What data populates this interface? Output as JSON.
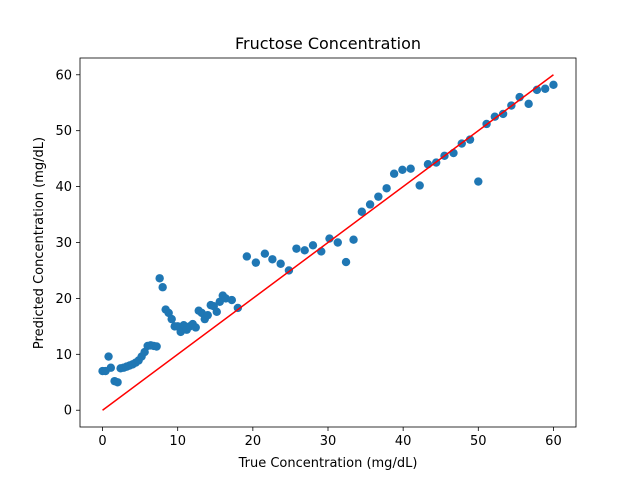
{
  "chart_data": {
    "type": "scatter",
    "title": "Fructose Concentration",
    "xlabel": "True Concentration (mg/dL)",
    "ylabel": "Predicted Concentration (mg/dL)",
    "xlim": [
      -3,
      63
    ],
    "ylim": [
      -3,
      63
    ],
    "x_ticks": [
      0,
      10,
      20,
      30,
      40,
      50,
      60
    ],
    "y_ticks": [
      0,
      10,
      20,
      30,
      40,
      50,
      60
    ],
    "grid": false,
    "legend": "none",
    "colors": {
      "points": "#1f77b4",
      "reference_line": "#ff0000"
    },
    "reference_line": {
      "x": [
        0,
        60
      ],
      "y": [
        0,
        60
      ]
    },
    "series": [
      {
        "points": [
          [
            0.0,
            7.0
          ],
          [
            0.4,
            7.0
          ],
          [
            0.8,
            9.6
          ],
          [
            1.1,
            7.6
          ],
          [
            1.6,
            5.2
          ],
          [
            2.0,
            5.0
          ],
          [
            2.4,
            7.5
          ],
          [
            2.8,
            7.6
          ],
          [
            3.2,
            7.8
          ],
          [
            3.6,
            8.0
          ],
          [
            4.0,
            8.2
          ],
          [
            4.4,
            8.5
          ],
          [
            4.8,
            8.9
          ],
          [
            5.2,
            9.6
          ],
          [
            5.6,
            10.4
          ],
          [
            6.0,
            11.5
          ],
          [
            6.4,
            11.6
          ],
          [
            6.8,
            11.5
          ],
          [
            7.2,
            11.4
          ],
          [
            7.6,
            23.6
          ],
          [
            8.0,
            22.0
          ],
          [
            8.4,
            18.0
          ],
          [
            8.8,
            17.4
          ],
          [
            9.2,
            16.3
          ],
          [
            9.6,
            15.0
          ],
          [
            10.0,
            15.0
          ],
          [
            10.4,
            14.0
          ],
          [
            10.8,
            15.2
          ],
          [
            11.2,
            14.4
          ],
          [
            11.6,
            15.0
          ],
          [
            12.0,
            15.4
          ],
          [
            12.4,
            14.8
          ],
          [
            12.8,
            17.8
          ],
          [
            13.2,
            17.4
          ],
          [
            13.6,
            16.3
          ],
          [
            14.0,
            17.0
          ],
          [
            14.4,
            18.8
          ],
          [
            14.8,
            18.6
          ],
          [
            15.2,
            17.6
          ],
          [
            15.6,
            19.4
          ],
          [
            16.0,
            20.5
          ],
          [
            16.4,
            20.0
          ],
          [
            17.2,
            19.7
          ],
          [
            18.0,
            18.3
          ],
          [
            19.2,
            27.5
          ],
          [
            20.4,
            26.4
          ],
          [
            21.6,
            28.0
          ],
          [
            22.6,
            27.0
          ],
          [
            23.7,
            26.2
          ],
          [
            24.8,
            25.0
          ],
          [
            25.8,
            28.9
          ],
          [
            26.9,
            28.6
          ],
          [
            28.0,
            29.5
          ],
          [
            29.1,
            28.4
          ],
          [
            30.2,
            30.7
          ],
          [
            31.3,
            30.0
          ],
          [
            32.4,
            26.5
          ],
          [
            33.4,
            30.5
          ],
          [
            34.5,
            35.5
          ],
          [
            35.6,
            36.8
          ],
          [
            36.7,
            38.2
          ],
          [
            37.8,
            39.7
          ],
          [
            38.8,
            42.3
          ],
          [
            39.9,
            43.0
          ],
          [
            41.0,
            43.2
          ],
          [
            42.2,
            40.2
          ],
          [
            43.3,
            44.0
          ],
          [
            44.4,
            44.3
          ],
          [
            45.5,
            45.5
          ],
          [
            46.7,
            46.0
          ],
          [
            47.8,
            47.7
          ],
          [
            48.9,
            48.4
          ],
          [
            50.0,
            40.9
          ],
          [
            51.1,
            51.2
          ],
          [
            52.2,
            52.5
          ],
          [
            53.3,
            53.0
          ],
          [
            54.4,
            54.5
          ],
          [
            55.5,
            56.0
          ],
          [
            56.7,
            54.8
          ],
          [
            57.8,
            57.3
          ],
          [
            58.9,
            57.5
          ],
          [
            60.0,
            58.2
          ]
        ]
      }
    ]
  }
}
